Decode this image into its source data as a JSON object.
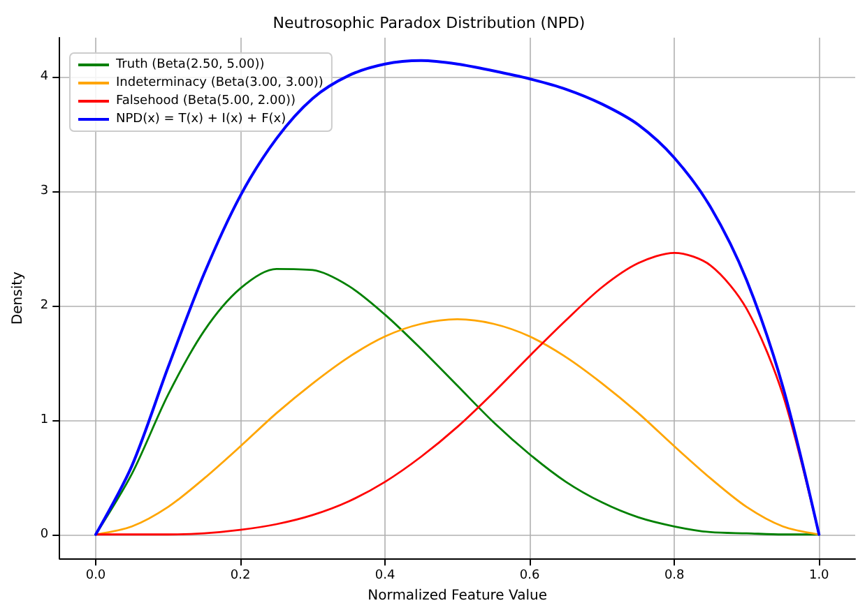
{
  "chart_data": {
    "type": "line",
    "title": "Neutrosophic Paradox Distribution (NPD)",
    "xlabel": "Normalized Feature Value",
    "ylabel": "Density",
    "x": [
      0,
      0.05,
      0.1,
      0.15,
      0.2,
      0.25,
      0.3,
      0.35,
      0.4,
      0.45,
      0.5,
      0.55,
      0.6,
      0.65,
      0.7,
      0.75,
      0.8,
      0.85,
      0.9,
      0.95,
      1
    ],
    "series": [
      {
        "name": "Truth (Beta(2.50, 5.00))",
        "color": "#008000",
        "values": [
          0,
          0.53,
          1.22,
          1.78,
          2.15,
          2.32,
          2.31,
          2.17,
          1.92,
          1.62,
          1.3,
          0.98,
          0.7,
          0.46,
          0.28,
          0.15,
          0.07,
          0.02,
          0.01,
          0,
          0
        ]
      },
      {
        "name": "Indeterminacy (Beta(3.00, 3.00))",
        "color": "#ffa500",
        "values": [
          0,
          0.07,
          0.24,
          0.49,
          0.77,
          1.06,
          1.32,
          1.55,
          1.73,
          1.84,
          1.88,
          1.84,
          1.73,
          1.55,
          1.32,
          1.06,
          0.77,
          0.49,
          0.24,
          0.07,
          0
        ]
      },
      {
        "name": "Falsehood (Beta(5.00, 2.00))",
        "color": "#ff0000",
        "values": [
          0,
          0,
          0,
          0.01,
          0.04,
          0.09,
          0.17,
          0.29,
          0.46,
          0.68,
          0.94,
          1.24,
          1.56,
          1.87,
          2.16,
          2.37,
          2.46,
          2.35,
          1.97,
          1.22,
          0
        ]
      },
      {
        "name": "NPD(x) = T(x) + I(x) + F(x)",
        "color": "#0000ff",
        "values": [
          0,
          0.6,
          1.46,
          2.28,
          2.96,
          3.46,
          3.81,
          4.01,
          4.11,
          4.14,
          4.11,
          4.05,
          3.98,
          3.89,
          3.76,
          3.58,
          3.29,
          2.86,
          2.22,
          1.29,
          0
        ]
      }
    ],
    "xlim": [
      -0.05,
      1.05
    ],
    "xticks": [
      {
        "value": 0,
        "label": "0.0"
      },
      {
        "value": 0.2,
        "label": "0.2"
      },
      {
        "value": 0.4,
        "label": "0.4"
      },
      {
        "value": 0.6,
        "label": "0.6"
      },
      {
        "value": 0.8,
        "label": "0.8"
      },
      {
        "value": 1,
        "label": "1.0"
      }
    ],
    "ylim": [
      -0.21,
      4.34
    ],
    "yticks": [
      0,
      1,
      2,
      3,
      4
    ],
    "grid": true,
    "legend": "top left"
  }
}
